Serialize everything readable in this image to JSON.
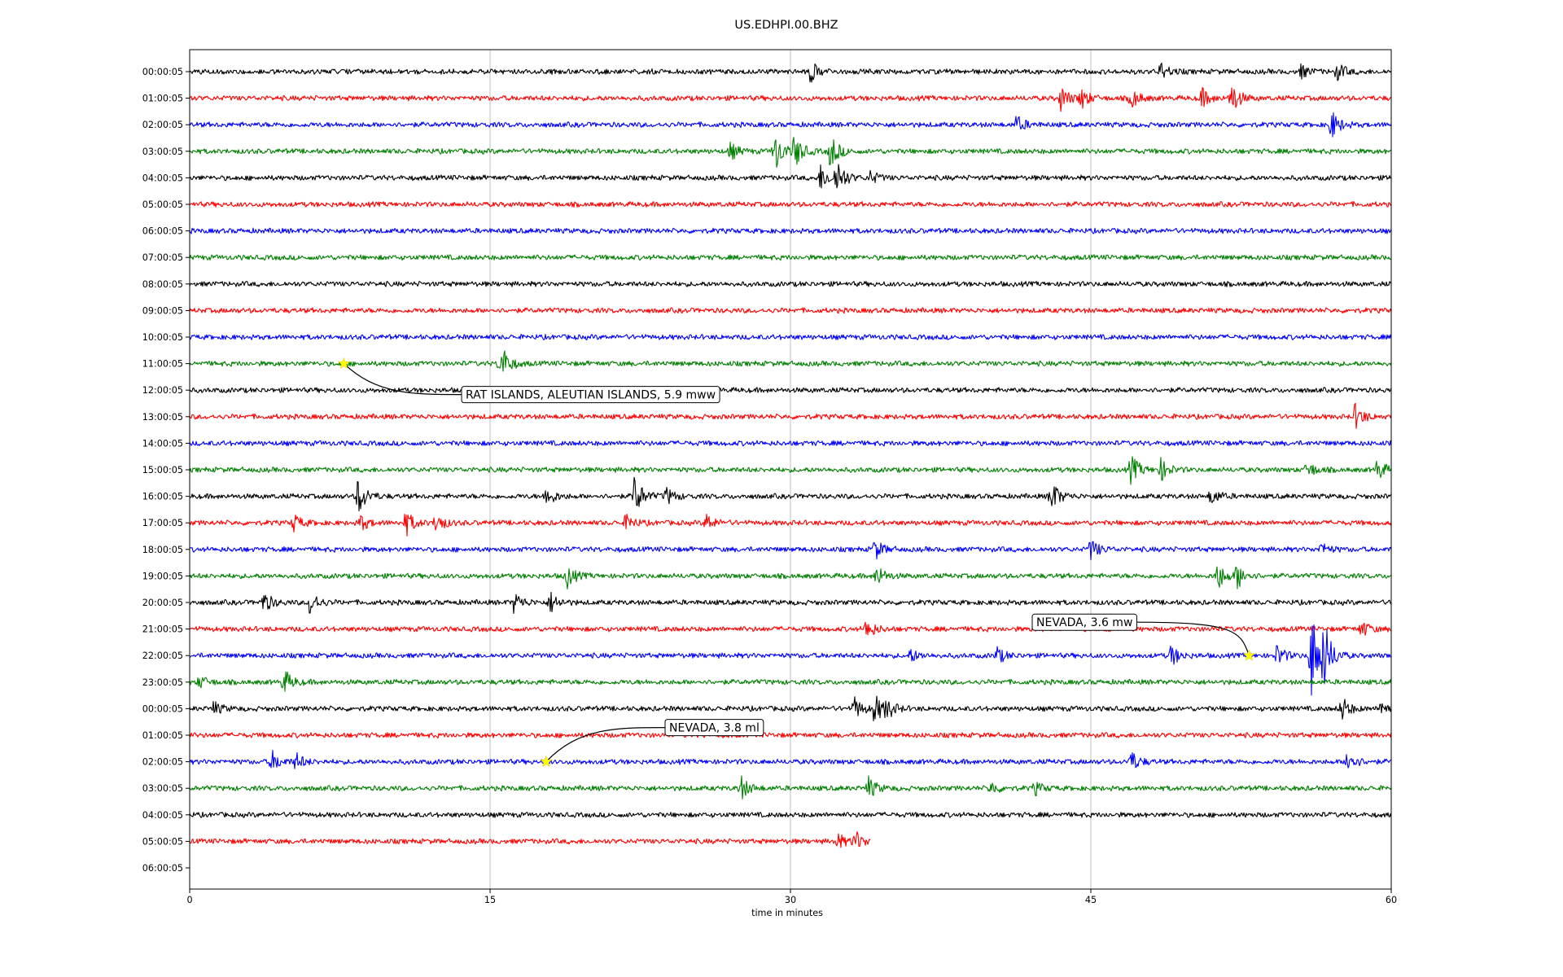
{
  "chart_data": {
    "type": "line",
    "title": "US.EDHPI.00.BHZ",
    "xlabel": "time in minutes",
    "ylabel": "",
    "xlim": [
      0,
      60
    ],
    "x_ticks": [
      0,
      15,
      30,
      45,
      60
    ],
    "grid": "vertical lines at 15-minute ticks",
    "trace_colors": [
      "#000000",
      "#ff0000",
      "#0000ff",
      "#008000"
    ],
    "row_labels": [
      "00:00:05",
      "01:00:05",
      "02:00:05",
      "03:00:05",
      "04:00:05",
      "05:00:05",
      "06:00:05",
      "07:00:05",
      "08:00:05",
      "09:00:05",
      "10:00:05",
      "11:00:05",
      "12:00:05",
      "13:00:05",
      "14:00:05",
      "15:00:05",
      "16:00:05",
      "17:00:05",
      "18:00:05",
      "19:00:05",
      "20:00:05",
      "21:00:05",
      "22:00:05",
      "23:00:05",
      "00:00:05",
      "01:00:05",
      "02:00:05",
      "03:00:05",
      "04:00:05",
      "05:00:05",
      "06:00:05"
    ],
    "last_row_end_minute": 34,
    "events": [
      {
        "row": 0,
        "minute": 31,
        "amp": 0.5
      },
      {
        "row": 0,
        "minute": 48.5,
        "amp": 0.4
      },
      {
        "row": 0,
        "minute": 55.5,
        "amp": 0.3
      },
      {
        "row": 0,
        "minute": 57.3,
        "amp": 0.4
      },
      {
        "row": 1,
        "minute": 43.5,
        "amp": 0.6
      },
      {
        "row": 1,
        "minute": 44.5,
        "amp": 0.5
      },
      {
        "row": 1,
        "minute": 47,
        "amp": 0.5
      },
      {
        "row": 1,
        "minute": 50.5,
        "amp": 0.5
      },
      {
        "row": 1,
        "minute": 52,
        "amp": 0.8
      },
      {
        "row": 2,
        "minute": 41.3,
        "amp": 0.4
      },
      {
        "row": 2,
        "minute": 57,
        "amp": 0.7
      },
      {
        "row": 3,
        "minute": 27,
        "amp": 0.4
      },
      {
        "row": 3,
        "minute": 29.2,
        "amp": 1.0
      },
      {
        "row": 3,
        "minute": 30.2,
        "amp": 0.8
      },
      {
        "row": 3,
        "minute": 32,
        "amp": 0.8
      },
      {
        "row": 4,
        "minute": 31.5,
        "amp": 0.6
      },
      {
        "row": 4,
        "minute": 32.3,
        "amp": 0.9
      },
      {
        "row": 4,
        "minute": 34,
        "amp": 0.3
      },
      {
        "row": 11,
        "minute": 15.5,
        "amp": 1.0
      },
      {
        "row": 13,
        "minute": 58.2,
        "amp": 0.6
      },
      {
        "row": 15,
        "minute": 47,
        "amp": 0.7
      },
      {
        "row": 15,
        "minute": 48.5,
        "amp": 0.5
      },
      {
        "row": 15,
        "minute": 55.8,
        "amp": 0.4
      },
      {
        "row": 15,
        "minute": 59.3,
        "amp": 0.5
      },
      {
        "row": 16,
        "minute": 8.4,
        "amp": 0.9
      },
      {
        "row": 16,
        "minute": 17.8,
        "amp": 0.5
      },
      {
        "row": 16,
        "minute": 22.2,
        "amp": 1.0
      },
      {
        "row": 16,
        "minute": 23.8,
        "amp": 0.4
      },
      {
        "row": 16,
        "minute": 43,
        "amp": 0.8
      },
      {
        "row": 16,
        "minute": 51,
        "amp": 0.4
      },
      {
        "row": 17,
        "minute": 5.2,
        "amp": 0.4
      },
      {
        "row": 17,
        "minute": 8.5,
        "amp": 0.4
      },
      {
        "row": 17,
        "minute": 10.8,
        "amp": 0.6
      },
      {
        "row": 17,
        "minute": 12.3,
        "amp": 0.5
      },
      {
        "row": 17,
        "minute": 21.8,
        "amp": 0.4
      },
      {
        "row": 17,
        "minute": 25.8,
        "amp": 0.4
      },
      {
        "row": 18,
        "minute": 34.2,
        "amp": 0.5
      },
      {
        "row": 18,
        "minute": 45,
        "amp": 0.5
      },
      {
        "row": 18,
        "minute": 56.5,
        "amp": 0.3
      },
      {
        "row": 19,
        "minute": 18.8,
        "amp": 0.6
      },
      {
        "row": 19,
        "minute": 34.3,
        "amp": 0.5
      },
      {
        "row": 19,
        "minute": 51.3,
        "amp": 0.7
      },
      {
        "row": 19,
        "minute": 52.3,
        "amp": 0.6
      },
      {
        "row": 20,
        "minute": 3.7,
        "amp": 0.5
      },
      {
        "row": 20,
        "minute": 6,
        "amp": 0.6
      },
      {
        "row": 20,
        "minute": 16.2,
        "amp": 0.5
      },
      {
        "row": 20,
        "minute": 18,
        "amp": 0.5
      },
      {
        "row": 21,
        "minute": 33.8,
        "amp": 0.5
      },
      {
        "row": 21,
        "minute": 58.5,
        "amp": 0.4
      },
      {
        "row": 22,
        "minute": 36,
        "amp": 0.3
      },
      {
        "row": 22,
        "minute": 40.3,
        "amp": 0.4
      },
      {
        "row": 22,
        "minute": 49,
        "amp": 0.5
      },
      {
        "row": 22,
        "minute": 54.3,
        "amp": 0.5
      },
      {
        "row": 22,
        "minute": 56,
        "amp": 2.2
      },
      {
        "row": 22,
        "minute": 56.6,
        "amp": 1.5
      },
      {
        "row": 23,
        "minute": 0.5,
        "amp": 0.3
      },
      {
        "row": 23,
        "minute": 4.7,
        "amp": 0.6
      },
      {
        "row": 24,
        "minute": 1.2,
        "amp": 0.3
      },
      {
        "row": 24,
        "minute": 33.2,
        "amp": 0.5
      },
      {
        "row": 24,
        "minute": 34.2,
        "amp": 0.7
      },
      {
        "row": 24,
        "minute": 34.8,
        "amp": 0.4
      },
      {
        "row": 24,
        "minute": 57.5,
        "amp": 0.6
      },
      {
        "row": 24,
        "minute": 59.5,
        "amp": 0.4
      },
      {
        "row": 26,
        "minute": 4.1,
        "amp": 0.5
      },
      {
        "row": 26,
        "minute": 5.3,
        "amp": 0.4
      },
      {
        "row": 26,
        "minute": 47,
        "amp": 0.5
      },
      {
        "row": 26,
        "minute": 57.8,
        "amp": 0.6
      },
      {
        "row": 27,
        "minute": 27.5,
        "amp": 0.6
      },
      {
        "row": 27,
        "minute": 33.9,
        "amp": 0.5
      },
      {
        "row": 27,
        "minute": 40,
        "amp": 0.3
      },
      {
        "row": 27,
        "minute": 42.2,
        "amp": 0.3
      },
      {
        "row": 29,
        "minute": 32.3,
        "amp": 0.4
      },
      {
        "row": 29,
        "minute": 33.2,
        "amp": 0.5
      }
    ],
    "annotations": [
      {
        "text": "RAT ISLANDS, ALEUTIAN ISLANDS, 5.9 mww",
        "row": 11,
        "minute": 7.7
      },
      {
        "text": "NEVADA, 3.6 mw",
        "row": 22,
        "minute": 52.9
      },
      {
        "text": "NEVADA, 3.8 ml",
        "row": 26,
        "minute": 17.8
      }
    ]
  }
}
